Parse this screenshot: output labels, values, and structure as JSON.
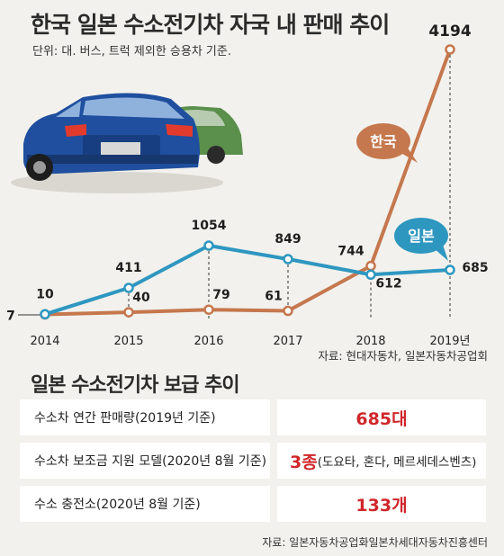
{
  "header": {
    "title": "한국 일본 수소전기차 자국 내 판매 추이",
    "subtitle": "단위: 대. 버스, 트럭 제외한 승용차 기준."
  },
  "chart_data": {
    "type": "line",
    "categories": [
      "2014",
      "2015",
      "2016",
      "2017",
      "2018",
      "2019년"
    ],
    "series": [
      {
        "name": "일본",
        "values": [
          10,
          411,
          1054,
          849,
          612,
          685
        ],
        "color": "#2e97c0"
      },
      {
        "name": "한국",
        "values": [
          7,
          40,
          79,
          61,
          744,
          4194
        ],
        "color": "#c5774d"
      }
    ],
    "point_labels": {
      "일본": [
        "10",
        "411",
        "1054",
        "849",
        "612",
        "685"
      ],
      "한국": [
        "7",
        "40",
        "79",
        "61",
        "744",
        "4194"
      ]
    },
    "ylim": [
      0,
      4194
    ],
    "grid": false
  },
  "chart_source": "자료: 현대자동차, 일본자동차공업회",
  "japan_table": {
    "title": "일본 수소전기차 보급 추이",
    "rows": [
      {
        "label": "수소차 연간 판매량(2019년 기준)",
        "value": "685대",
        "note": ""
      },
      {
        "label": "수소차 보조금 지원 모델(2020년 8월 기준)",
        "value": "3종",
        "note": "(도요타, 혼다, 메르세데스벤츠)"
      },
      {
        "label": "수소 충전소(2020년 8월 기준)",
        "value": "133개",
        "note": ""
      }
    ],
    "source": "자료: 일본자동차공업화일본차세대자동차진흥센터"
  }
}
